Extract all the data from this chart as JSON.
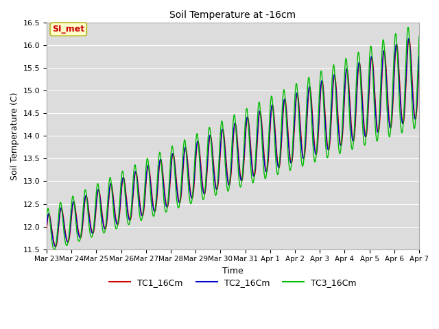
{
  "title": "Soil Temperature at -16cm",
  "xlabel": "Time",
  "ylabel": "Soil Temperature (C)",
  "ylim": [
    11.5,
    16.5
  ],
  "series": {
    "TC1_16Cm": {
      "color": "#cc0000",
      "label": "TC1_16Cm"
    },
    "TC2_16Cm": {
      "color": "#0000cc",
      "label": "TC2_16Cm"
    },
    "TC3_16Cm": {
      "color": "#00bb00",
      "label": "TC3_16Cm"
    }
  },
  "annotation_text": "SI_met",
  "annotation_color": "#cc0000",
  "annotation_bg": "#ffffcc",
  "plot_bg": "#dcdcdc",
  "grid_color": "#ffffff",
  "tick_labels": [
    "Mar 23",
    "Mar 24",
    "Mar 25",
    "Mar 26",
    "Mar 27",
    "Mar 28",
    "Mar 29",
    "Mar 30",
    "Mar 31",
    "Apr 1",
    "Apr 2",
    "Apr 3",
    "Apr 4",
    "Apr 5",
    "Apr 6",
    "Apr 7"
  ]
}
